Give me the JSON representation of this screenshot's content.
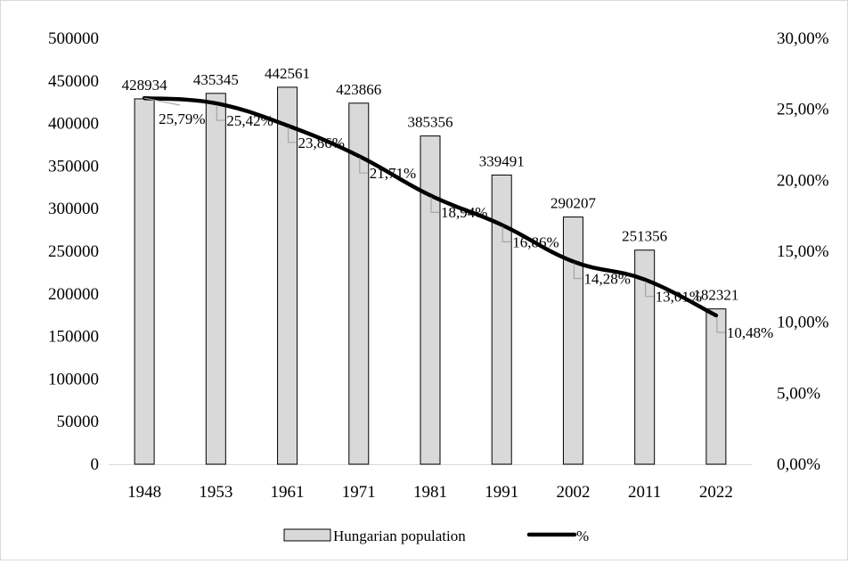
{
  "chart_data": {
    "type": "bar",
    "categories": [
      "1948",
      "1953",
      "1961",
      "1971",
      "1981",
      "1991",
      "2002",
      "2011",
      "2022"
    ],
    "series": [
      {
        "name": "Hungarian population",
        "type": "bar",
        "axis": "left",
        "values": [
          428934,
          435345,
          442561,
          423866,
          385356,
          339491,
          290207,
          251356,
          182321
        ],
        "labels": [
          "428934",
          "435345",
          "442561",
          "423866",
          "385356",
          "339491",
          "290207",
          "251356",
          "182321"
        ]
      },
      {
        "name": "%",
        "type": "line",
        "axis": "right",
        "values": [
          25.79,
          25.42,
          23.86,
          21.71,
          18.94,
          16.86,
          14.28,
          13.01,
          10.48
        ],
        "labels": [
          "25,79%",
          "25,42%",
          "23,86%",
          "21,71%",
          "18,94%",
          "16,86%",
          "14,28%",
          "13,01%",
          "10,48%"
        ]
      }
    ],
    "y_left": {
      "ylim": [
        0,
        500000
      ],
      "ticks": [
        "0",
        "50000",
        "100000",
        "150000",
        "200000",
        "250000",
        "300000",
        "350000",
        "400000",
        "450000",
        "500000"
      ]
    },
    "y_right": {
      "ylim": [
        0,
        30
      ],
      "ticks": [
        "0,00%",
        "5,00%",
        "10,00%",
        "15,00%",
        "20,00%",
        "25,00%",
        "30,00%"
      ]
    },
    "grid": false,
    "legend": "bottom",
    "colors": {
      "bar_fill": "#d9d9d9",
      "bar_stroke": "#000000",
      "line": "#000000",
      "leader": "#a6a6a6"
    }
  }
}
